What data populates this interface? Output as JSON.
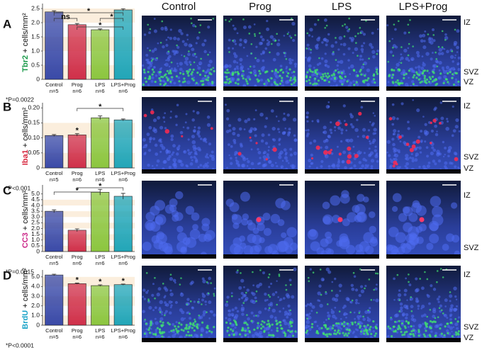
{
  "columns": [
    "Control",
    "Prog",
    "LPS",
    "LPS+Prog"
  ],
  "regions": [
    [
      "IZ",
      "SVZ",
      "VZ"
    ],
    [
      "IZ",
      "SVZ",
      "VZ"
    ],
    [
      "IZ",
      "SVZ"
    ],
    [
      "IZ",
      "SVZ",
      "VZ"
    ]
  ],
  "chart_data": [
    {
      "type": "bar",
      "panel": "A",
      "ylabel_marker": "Tbr2",
      "ylabel_marker_color": "#1a9a4a",
      "ylabel": "+ cells/mm²",
      "categories": [
        "Control",
        "Prog",
        "LPS",
        "LPS+Prog"
      ],
      "n": [
        "n=5",
        "n=6",
        "n=6",
        "n=6"
      ],
      "values": [
        2.38,
        1.93,
        1.75,
        2.45
      ],
      "errors": [
        0.04,
        0.04,
        0.03,
        0.04
      ],
      "colors": [
        "#3a4aa8",
        "#d0304a",
        "#8cc63f",
        "#22a6b8"
      ],
      "ylim": [
        0,
        2.6
      ],
      "yticks": [
        0,
        0.5,
        {
          "value": 1,
          "label": "1.0"
        },
        1.5,
        {
          "value": 2,
          "label": "2.0"
        },
        2.5
      ],
      "annotations": [
        "ns",
        "*",
        "*",
        "*"
      ],
      "p_value": "*P=0.0022"
    },
    {
      "type": "bar",
      "panel": "B",
      "ylabel_marker": "Iba1",
      "ylabel_marker_color": "#d7263d",
      "ylabel": "+ cells/mm²",
      "categories": [
        "Control",
        "Prog",
        "LPS",
        "LPS+Prog"
      ],
      "n": [
        "n=5",
        "n=6",
        "n=6",
        "n=6"
      ],
      "values": [
        0.108,
        0.11,
        0.167,
        0.16
      ],
      "errors": [
        0.003,
        0.004,
        0.006,
        0.003
      ],
      "colors": [
        "#3a4aa8",
        "#d0304a",
        "#8cc63f",
        "#22a6b8"
      ],
      "ylim": [
        0,
        0.21
      ],
      "yticks": [
        0,
        0.05,
        {
          "value": 0.1,
          "label": "0.10"
        },
        0.15,
        {
          "value": 0.2,
          "label": "0.20"
        }
      ],
      "annotations": [
        "*",
        "*"
      ],
      "p_value": "*P<0.001"
    },
    {
      "type": "bar",
      "panel": "C",
      "ylabel_marker": "CC3",
      "ylabel_marker_color": "#cc2a8a",
      "ylabel": "+ cells/mm²",
      "categories": [
        "Control",
        "Prog",
        "LPS",
        "LPS+Prog"
      ],
      "n": [
        "n=5",
        "n=6",
        "n=6",
        "n=6"
      ],
      "values": [
        3.5,
        1.85,
        5.15,
        4.8
      ],
      "errors": [
        0.12,
        0.12,
        0.25,
        0.25
      ],
      "colors": [
        "#3a4aa8",
        "#d0304a",
        "#8cc63f",
        "#22a6b8"
      ],
      "ylim": [
        0,
        5.6
      ],
      "yticks": [
        0,
        0.5,
        {
          "value": 1,
          "label": "1.0"
        },
        1.5,
        {
          "value": 2,
          "label": "2.0"
        },
        2.5,
        {
          "value": 3,
          "label": "3.0"
        },
        3.5,
        {
          "value": 4,
          "label": "4.0"
        },
        4.5,
        {
          "value": 5,
          "label": "5.0"
        }
      ],
      "annotations": [
        "*",
        "*"
      ],
      "p_value": "*P=0.0015"
    },
    {
      "type": "bar",
      "panel": "D",
      "ylabel_marker": "BrdU",
      "ylabel_marker_color": "#1aa3c8",
      "ylabel": "+ cells/mm²",
      "categories": [
        "Control",
        "Prog",
        "LPS",
        "LPS+Prog"
      ],
      "n": [
        "n=5",
        "n=6",
        "n=6",
        "n=6"
      ],
      "values": [
        5.2,
        4.3,
        4.1,
        4.2
      ],
      "errors": [
        0.08,
        0.06,
        0.08,
        0.06
      ],
      "colors": [
        "#3a4aa8",
        "#d0304a",
        "#8cc63f",
        "#22a6b8"
      ],
      "ylim": [
        0,
        5.5
      ],
      "yticks": [
        0,
        {
          "value": 1,
          "label": "1.0"
        },
        {
          "value": 2,
          "label": "2.0"
        },
        {
          "value": 3,
          "label": "3.0"
        },
        {
          "value": 4,
          "label": "4.0"
        },
        {
          "value": 5,
          "label": "5.0"
        }
      ],
      "annotations": [
        "*",
        "*",
        "*"
      ],
      "p_value": "*P<0.0001"
    }
  ]
}
